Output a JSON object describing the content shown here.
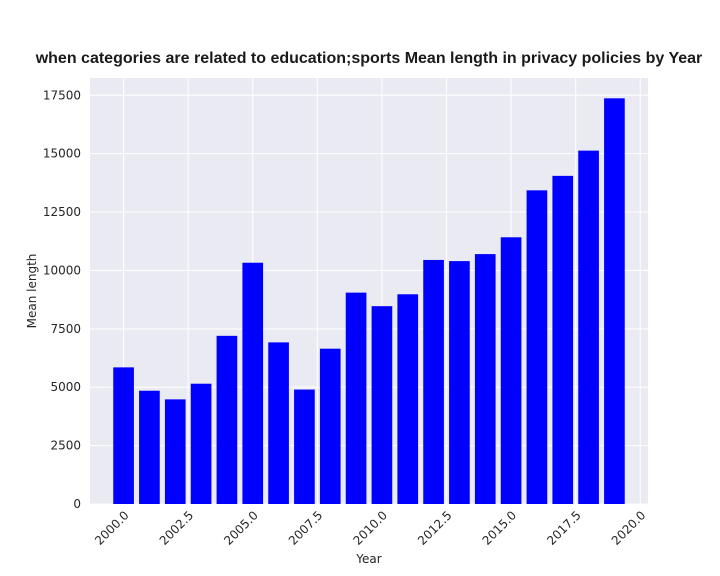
{
  "chart_data": {
    "type": "bar",
    "title": "when categories are related to education;sports Mean length in privacy policies by Year",
    "xlabel": "Year",
    "ylabel": "Mean length",
    "x": [
      2000,
      2001,
      2002,
      2003,
      2004,
      2005,
      2006,
      2007,
      2008,
      2009,
      2010,
      2011,
      2012,
      2013,
      2014,
      2015,
      2016,
      2017,
      2018,
      2019
    ],
    "values": [
      5850,
      4850,
      4480,
      5150,
      7200,
      10330,
      6920,
      4900,
      6650,
      9050,
      8470,
      8980,
      10450,
      10400,
      10700,
      11420,
      13430,
      14050,
      15130,
      17370
    ],
    "xlim": [
      1998.7,
      2020.3
    ],
    "ylim": [
      0,
      18240
    ],
    "xticks": [
      2000,
      2002.5,
      2005,
      2007.5,
      2010,
      2012.5,
      2015,
      2017.5,
      2020
    ],
    "xtick_labels": [
      "2000.0",
      "2002.5",
      "2005.0",
      "2007.5",
      "2010.0",
      "2012.5",
      "2015.0",
      "2017.5",
      "2020.0"
    ],
    "yticks": [
      0,
      2500,
      5000,
      7500,
      10000,
      12500,
      15000,
      17500
    ],
    "ytick_labels": [
      "0",
      "2500",
      "5000",
      "7500",
      "10000",
      "12500",
      "15000",
      "17500"
    ],
    "bar_width": 0.8,
    "grid": true,
    "colors": {
      "bar": "#0000ff",
      "plot_bg": "#eaeaf2",
      "grid": "#ffffff"
    }
  }
}
